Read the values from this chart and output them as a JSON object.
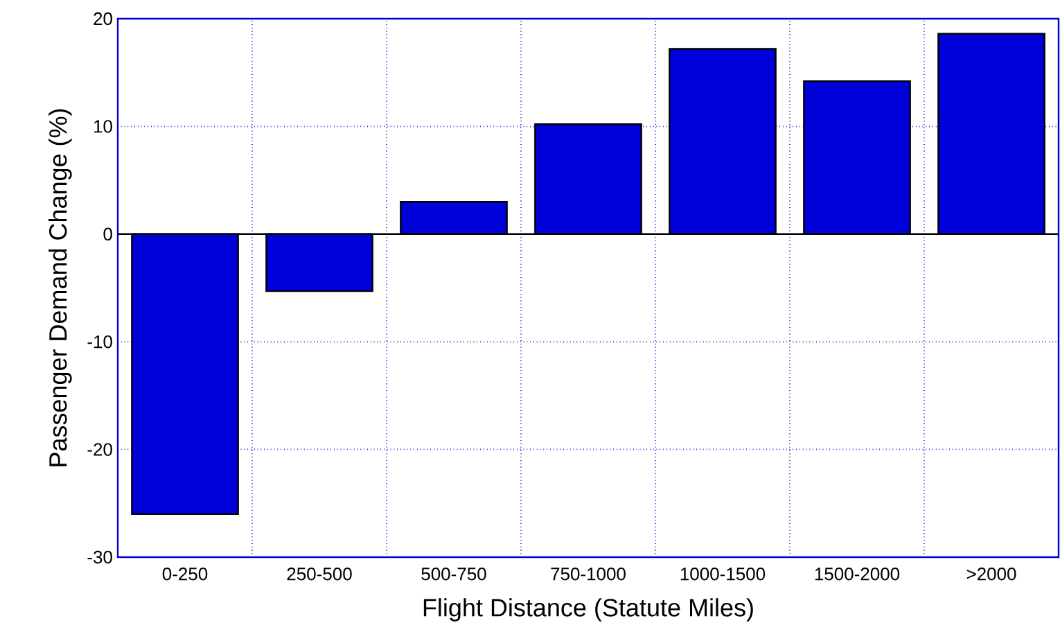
{
  "chart_data": {
    "type": "bar",
    "xlabel": "Flight Distance (Statute Miles)",
    "ylabel": "Passenger Demand Change (%)",
    "categories": [
      "0-250",
      "250-500",
      "500-750",
      "750-1000",
      "1000-1500",
      "1500-2000",
      ">2000"
    ],
    "values": [
      -26.0,
      -5.3,
      3.0,
      10.2,
      17.2,
      14.2,
      18.6
    ],
    "color": "#0000d8",
    "ylim": [
      -30,
      20
    ],
    "yticks": [
      -30,
      -20,
      -10,
      0,
      10,
      20
    ],
    "grid": true,
    "ref_lines": [
      {
        "axis": "y",
        "value": 0,
        "color": "#000000"
      }
    ]
  }
}
